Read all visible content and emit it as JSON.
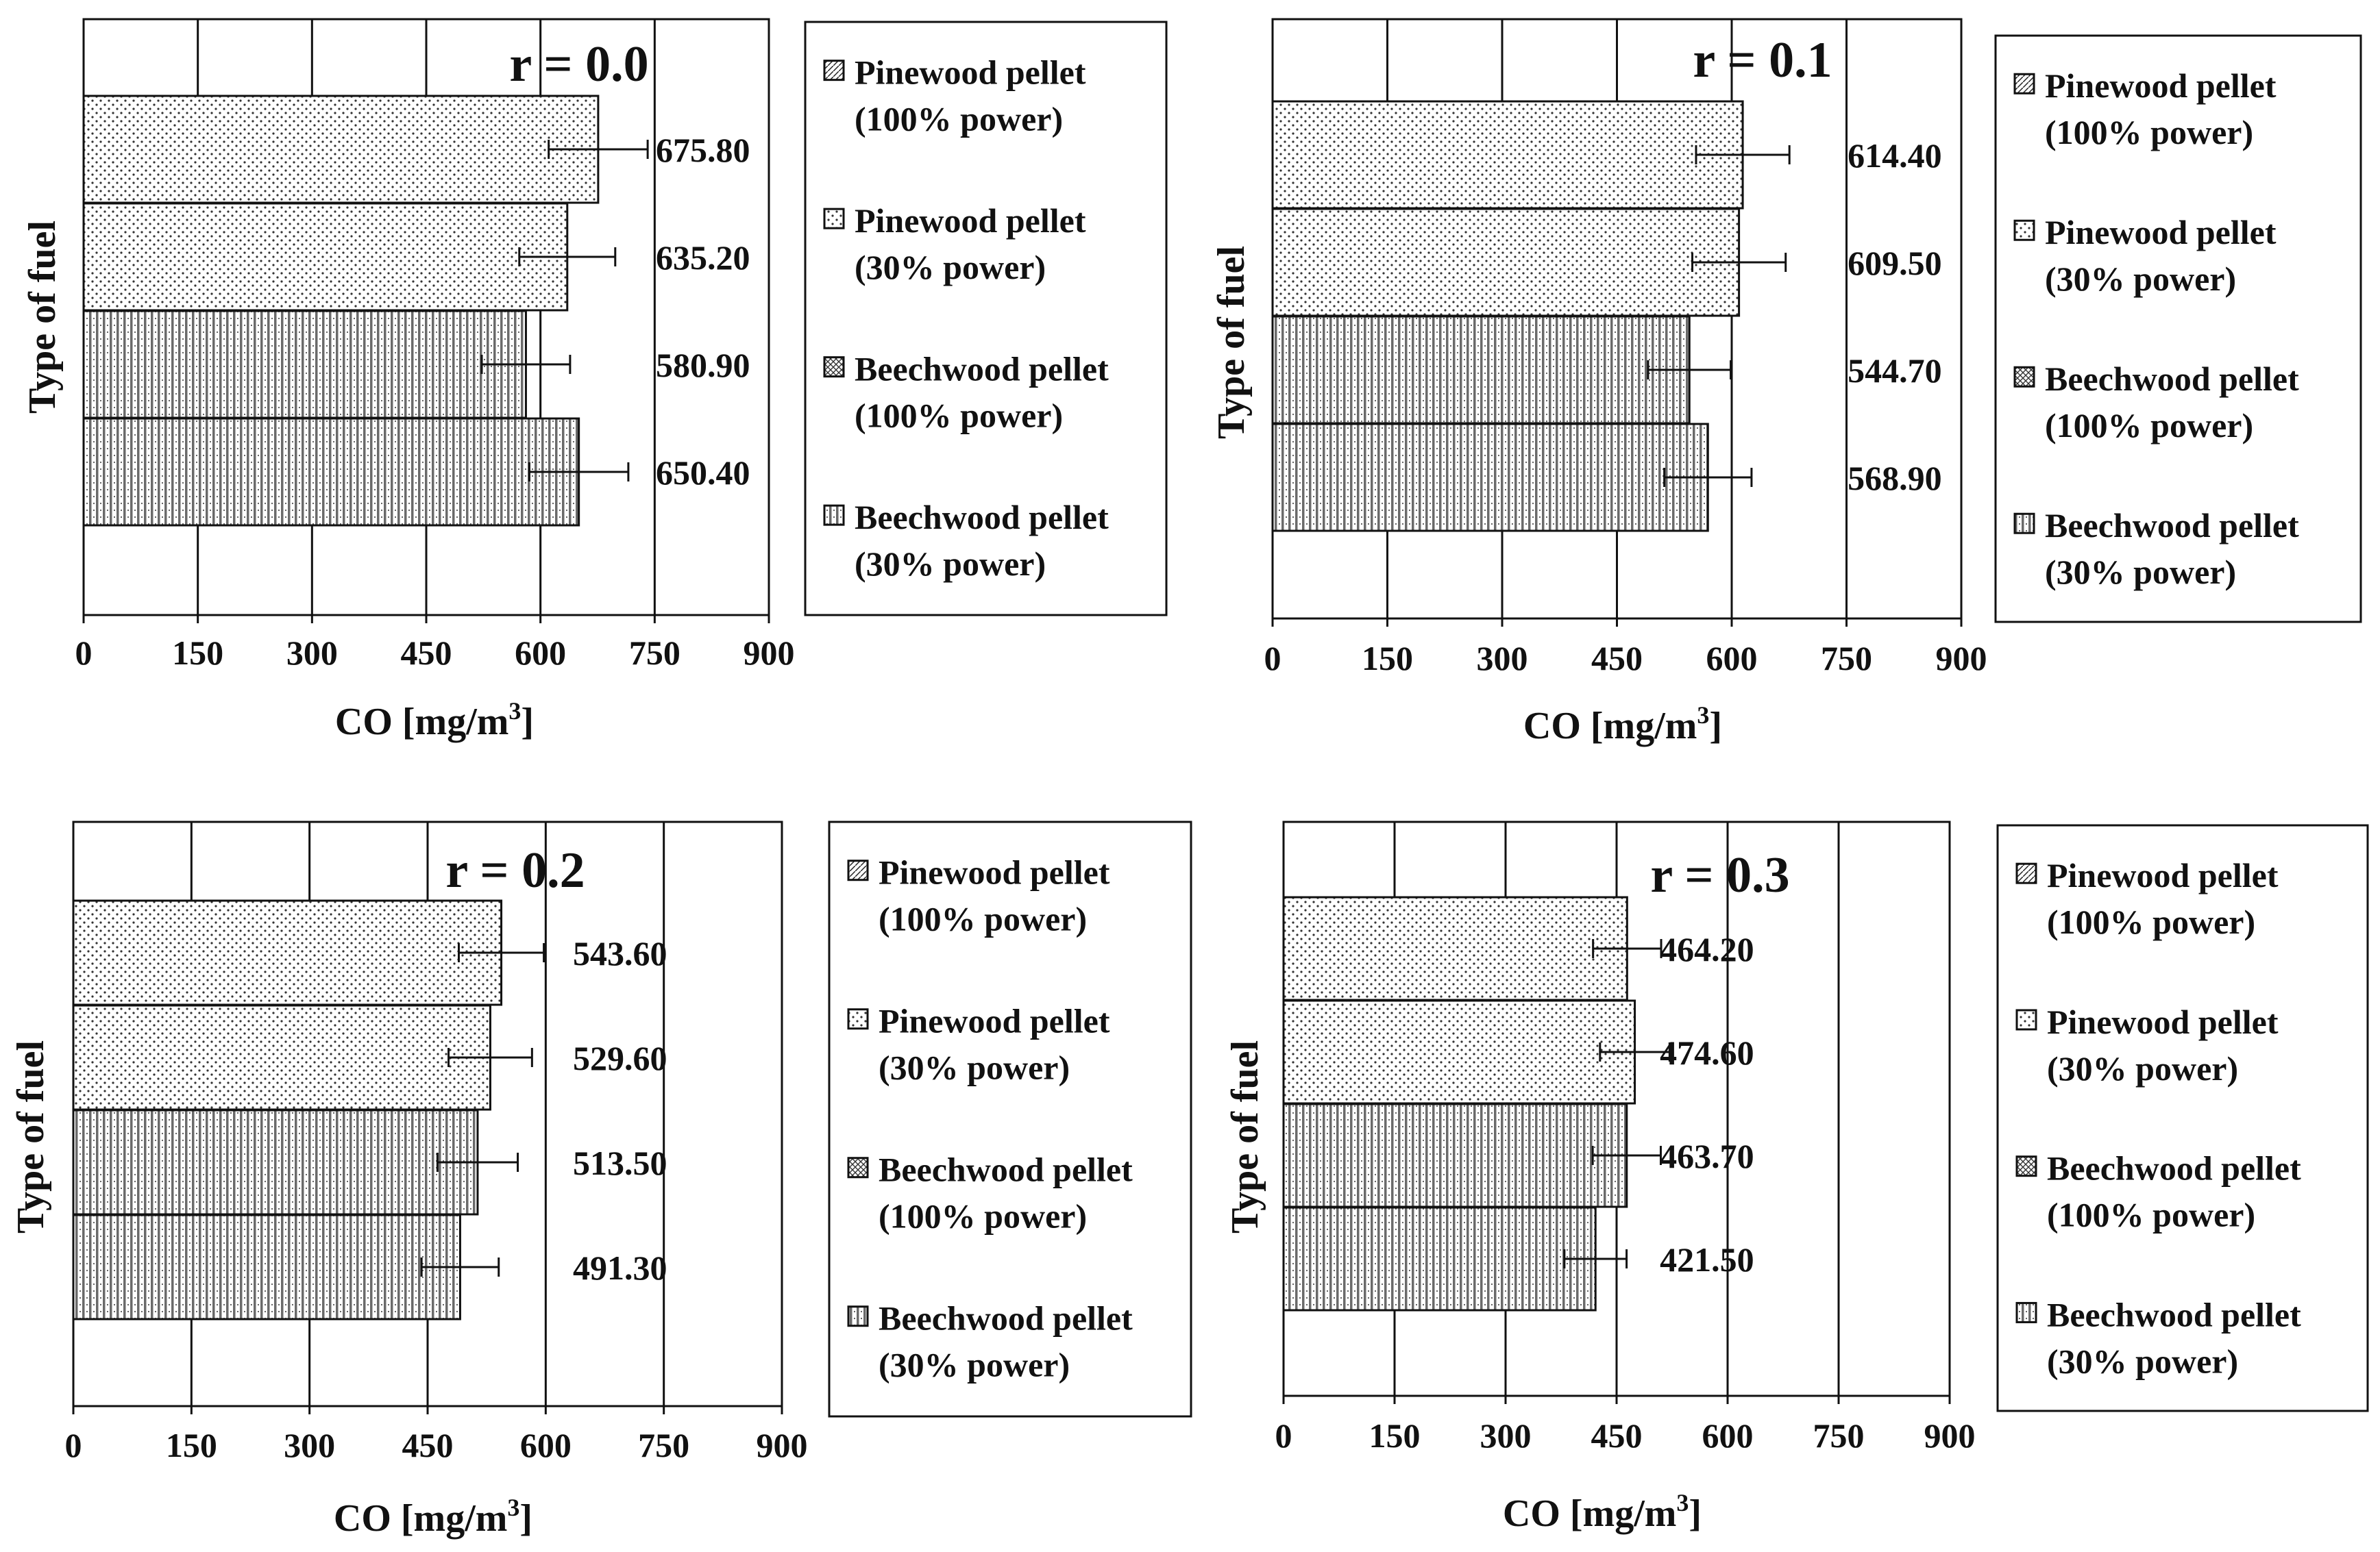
{
  "figure": {
    "description_free": true
  },
  "chart_data": [
    {
      "type": "bar",
      "orientation": "horizontal",
      "title": "r = 0.0",
      "xlabel": "CO [mg/m³]",
      "ylabel": "Type of fuel",
      "xlim": [
        0,
        900
      ],
      "xticks": [
        "0",
        "150",
        "300",
        "450",
        "600",
        "750",
        "900"
      ],
      "grid": true,
      "legend_position": "right",
      "series": [
        {
          "name": "Pinewood pellet (100% power)",
          "name_lines": [
            "Pinewood pellet",
            "(100% power)"
          ],
          "value": 675.8,
          "label": "675.80",
          "error": 65,
          "pattern": "dots"
        },
        {
          "name": "Pinewood pellet (30% power)",
          "name_lines": [
            "Pinewood pellet",
            "(30% power)"
          ],
          "value": 635.2,
          "label": "635.20",
          "error": 63,
          "pattern": "dots"
        },
        {
          "name": "Beechwood pellet (100% power)",
          "name_lines": [
            "Beechwood pellet",
            "(100% power)"
          ],
          "value": 580.9,
          "label": "580.90",
          "error": 58,
          "pattern": "vstripes"
        },
        {
          "name": "Beechwood pellet (30% power)",
          "name_lines": [
            "Beechwood pellet",
            "(30% power)"
          ],
          "value": 650.4,
          "label": "650.40",
          "error": 65,
          "pattern": "vstripes"
        }
      ]
    },
    {
      "type": "bar",
      "orientation": "horizontal",
      "title": "r = 0.1",
      "xlabel": "CO [mg/m³]",
      "ylabel": "Type of fuel",
      "xlim": [
        0,
        900
      ],
      "xticks": [
        "0",
        "150",
        "300",
        "450",
        "600",
        "750",
        "900"
      ],
      "grid": true,
      "legend_position": "right",
      "series": [
        {
          "name": "Pinewood pellet (100% power)",
          "name_lines": [
            "Pinewood pellet",
            "(100% power)"
          ],
          "value": 614.4,
          "label": "614.40",
          "error": 61,
          "pattern": "dots"
        },
        {
          "name": "Pinewood pellet (30% power)",
          "name_lines": [
            "Pinewood pellet",
            "(30% power)"
          ],
          "value": 609.5,
          "label": "609.50",
          "error": 61,
          "pattern": "dots"
        },
        {
          "name": "Beechwood pellet (100% power)",
          "name_lines": [
            "Beechwood pellet",
            "(100% power)"
          ],
          "value": 544.7,
          "label": "544.70",
          "error": 54,
          "pattern": "vstripes"
        },
        {
          "name": "Beechwood pellet (30% power)",
          "name_lines": [
            "Beechwood pellet",
            "(30% power)"
          ],
          "value": 568.9,
          "label": "568.90",
          "error": 57,
          "pattern": "vstripes"
        }
      ]
    },
    {
      "type": "bar",
      "orientation": "horizontal",
      "title": "r = 0.2",
      "xlabel": "CO [mg/m³]",
      "ylabel": "Type of fuel",
      "xlim": [
        0,
        900
      ],
      "xticks": [
        "0",
        "150",
        "300",
        "450",
        "600",
        "750",
        "900"
      ],
      "grid": true,
      "legend_position": "right",
      "series": [
        {
          "name": "Pinewood pellet (100% power)",
          "name_lines": [
            "Pinewood pellet",
            "(100% power)"
          ],
          "value": 543.6,
          "label": "543.60",
          "error": 54,
          "pattern": "dots"
        },
        {
          "name": "Pinewood pellet (30% power)",
          "name_lines": [
            "Pinewood pellet",
            "(30% power)"
          ],
          "value": 529.6,
          "label": "529.60",
          "error": 53,
          "pattern": "dots"
        },
        {
          "name": "Beechwood pellet (100% power)",
          "name_lines": [
            "Beechwood pellet",
            "(100% power)"
          ],
          "value": 513.5,
          "label": "513.50",
          "error": 51,
          "pattern": "vstripes"
        },
        {
          "name": "Beechwood pellet (30% power)",
          "name_lines": [
            "Beechwood pellet",
            "(30% power)"
          ],
          "value": 491.3,
          "label": "491.30",
          "error": 49,
          "pattern": "vstripes"
        }
      ]
    },
    {
      "type": "bar",
      "orientation": "horizontal",
      "title": "r = 0.3",
      "xlabel": "CO [mg/m³]",
      "ylabel": "Type of fuel",
      "xlim": [
        0,
        900
      ],
      "xticks": [
        "0",
        "150",
        "300",
        "450",
        "600",
        "750",
        "900"
      ],
      "grid": true,
      "legend_position": "right",
      "series": [
        {
          "name": "Pinewood pellet (100% power)",
          "name_lines": [
            "Pinewood pellet",
            "(100% power)"
          ],
          "value": 464.2,
          "label": "464.20",
          "error": 46,
          "pattern": "dots"
        },
        {
          "name": "Pinewood pellet (30% power)",
          "name_lines": [
            "Pinewood pellet",
            "(30% power)"
          ],
          "value": 474.6,
          "label": "474.60",
          "error": 47,
          "pattern": "dots"
        },
        {
          "name": "Beechwood pellet (100% power)",
          "name_lines": [
            "Beechwood pellet",
            "(100% power)"
          ],
          "value": 463.7,
          "label": "463.70",
          "error": 46,
          "pattern": "vstripes"
        },
        {
          "name": "Beechwood pellet (30% power)",
          "name_lines": [
            "Beechwood pellet",
            "(30% power)"
          ],
          "value": 421.5,
          "label": "421.50",
          "error": 42,
          "pattern": "vstripes"
        }
      ]
    }
  ]
}
